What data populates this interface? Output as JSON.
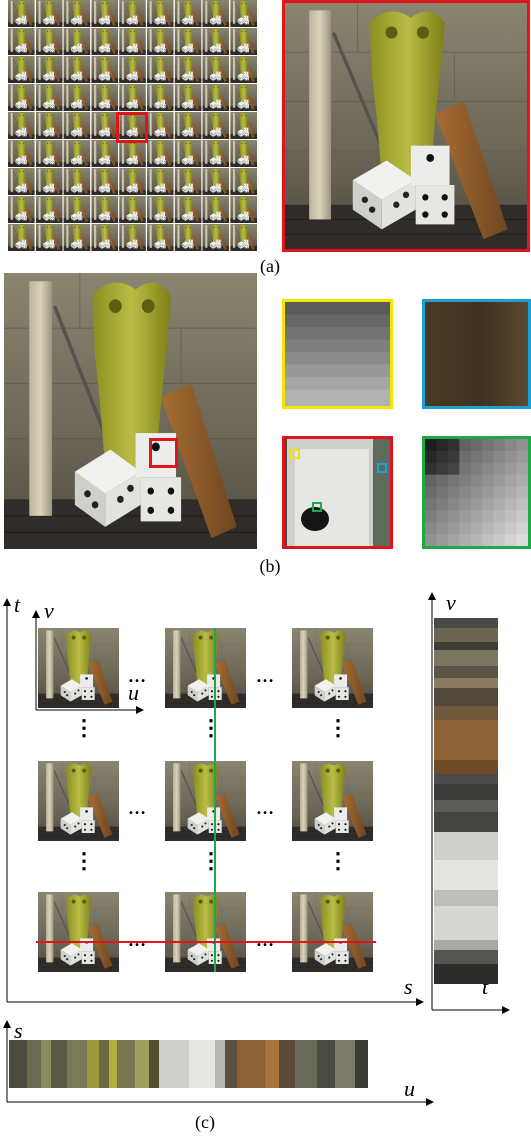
{
  "captions": {
    "a": "(a)",
    "b": "(b)",
    "c": "(c)"
  },
  "axis_labels": {
    "t": "t",
    "v": "v",
    "u": "u",
    "s": "s",
    "epi_vertical_v": "v",
    "epi_vertical_t": "t",
    "epi_horizontal_s": "s",
    "epi_horizontal_u": "u"
  },
  "ellipsis_h": "…",
  "ellipsis_v": "⋮",
  "colors": {
    "highlight_red": "#e0151b",
    "yellow_box": "#f2e600",
    "cyan_box": "#1a9fd6",
    "green_box": "#1fa84a",
    "wall": "#6f6a58",
    "floor": "#2c2a28",
    "statue": "#9aa02a",
    "plank": "#8a5a2a",
    "dice": "#e8e8e6"
  },
  "icons": [
    "scene-thumbnail",
    "dice-scene",
    "epi-slice"
  ]
}
